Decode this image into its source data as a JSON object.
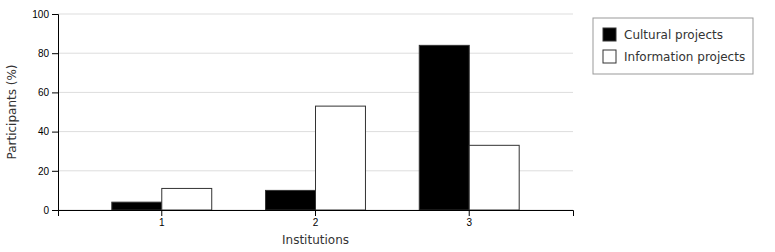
{
  "chart_data": {
    "type": "bar",
    "categories": [
      "1",
      "2",
      "3"
    ],
    "series": [
      {
        "name": "Cultural projects",
        "color": "#000000",
        "values": [
          4,
          10,
          84
        ]
      },
      {
        "name": "Information projects",
        "color": "#ffffff",
        "values": [
          11,
          53,
          33
        ]
      }
    ],
    "xlabel": "Institutions",
    "ylabel": "Participants (%)",
    "ylim": [
      0,
      100
    ],
    "yticks": [
      0,
      20,
      40,
      60,
      80,
      100
    ],
    "grid": true,
    "legend": "right"
  }
}
